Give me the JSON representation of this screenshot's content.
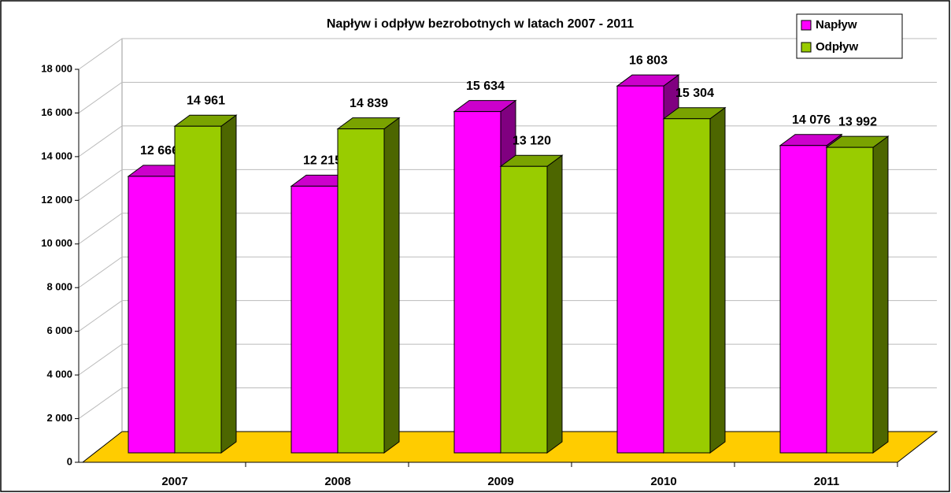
{
  "chart_data": {
    "type": "bar3d",
    "title": "Napływ i odpływ bezrobotnych w latach 2007 - 2011",
    "categories": [
      "2007",
      "2008",
      "2009",
      "2010",
      "2011"
    ],
    "series": [
      {
        "name": "Napływ",
        "color": "#ff00ff",
        "values": [
          12666,
          12215,
          15634,
          16803,
          14076
        ],
        "value_labels": [
          "12 666",
          "12 215",
          "15 634",
          "16 803",
          "14 076"
        ]
      },
      {
        "name": "Odpływ",
        "color": "#99cc00",
        "values": [
          14961,
          14839,
          13120,
          15304,
          13992
        ],
        "value_labels": [
          "14 961",
          "14 839",
          "13 120",
          "15 304",
          "13 992"
        ]
      }
    ],
    "ylim": [
      0,
      18000
    ],
    "yticks": [
      0,
      {
        "value": 2000,
        "label": "2 000"
      },
      {
        "value": 4000,
        "label": "4 000"
      },
      {
        "value": 6000,
        "label": "6 000"
      },
      {
        "value": 8000,
        "label": "8 000"
      },
      {
        "value": 10000,
        "label": "10 000"
      },
      {
        "value": 12000,
        "label": "12 000"
      },
      {
        "value": 14000,
        "label": "14 000"
      },
      {
        "value": 16000,
        "label": "16 000"
      },
      {
        "value": 18000,
        "label": "18 000"
      }
    ],
    "grid": true,
    "legend": "top-right",
    "floor_color": "#ffcc00"
  }
}
